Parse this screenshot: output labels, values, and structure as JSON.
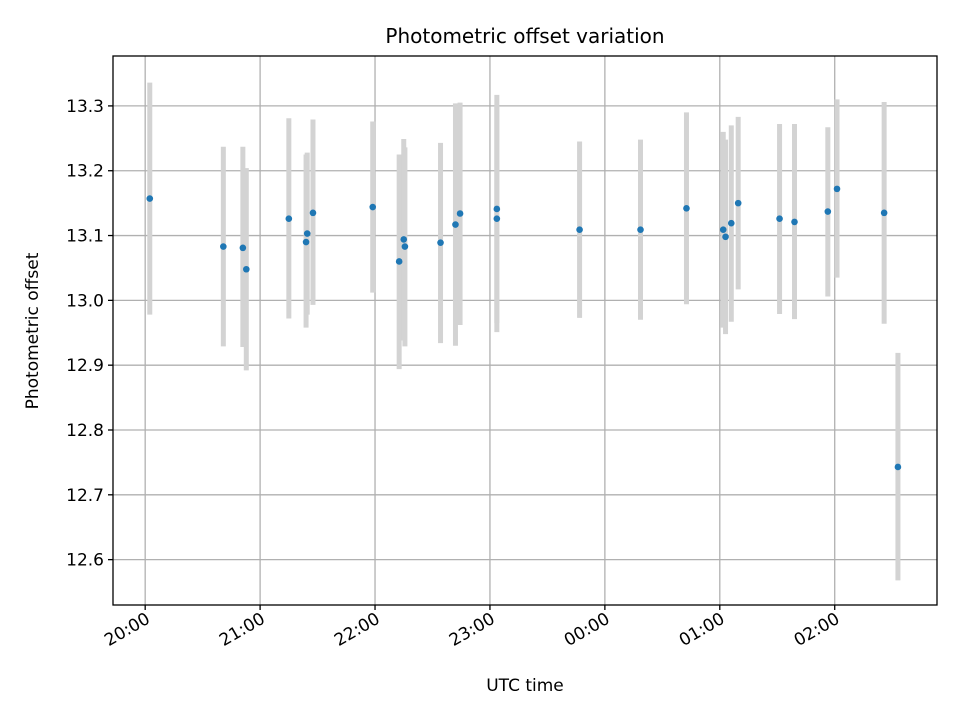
{
  "chart_data": {
    "type": "scatter",
    "title": "Photometric offset variation",
    "xlabel": "UTC time",
    "ylabel": "Photometric offset",
    "x_tick_labels": [
      "20:00",
      "21:00",
      "22:00",
      "23:00",
      "00:00",
      "01:00",
      "02:00"
    ],
    "y_tick_labels": [
      "12.6",
      "12.7",
      "12.8",
      "12.9",
      "13.0",
      "13.1",
      "13.2",
      "13.3"
    ],
    "x_axis": "time (hours after 20:00 UTC)",
    "xlim": [
      -0.28,
      6.89
    ],
    "ylim": [
      12.53,
      13.377
    ],
    "grid": true,
    "marker_color": "#1f77b4",
    "errorbar_color": "#d3d3d3",
    "points": [
      {
        "x": 0.04,
        "y": 13.157,
        "lo": 12.978,
        "hi": 13.336
      },
      {
        "x": 0.68,
        "y": 13.083,
        "lo": 12.929,
        "hi": 13.237
      },
      {
        "x": 0.85,
        "y": 13.081,
        "lo": 12.928,
        "hi": 13.237
      },
      {
        "x": 0.88,
        "y": 13.048,
        "lo": 12.892,
        "hi": 13.204
      },
      {
        "x": 1.25,
        "y": 13.126,
        "lo": 12.972,
        "hi": 13.281
      },
      {
        "x": 1.4,
        "y": 13.09,
        "lo": 12.958,
        "hi": 13.225
      },
      {
        "x": 1.41,
        "y": 13.103,
        "lo": 12.978,
        "hi": 13.228
      },
      {
        "x": 1.46,
        "y": 13.135,
        "lo": 12.993,
        "hi": 13.279
      },
      {
        "x": 1.98,
        "y": 13.144,
        "lo": 13.012,
        "hi": 13.276
      },
      {
        "x": 2.21,
        "y": 13.06,
        "lo": 12.894,
        "hi": 13.225
      },
      {
        "x": 2.25,
        "y": 13.094,
        "lo": 12.938,
        "hi": 13.249
      },
      {
        "x": 2.26,
        "y": 13.083,
        "lo": 12.929,
        "hi": 13.236
      },
      {
        "x": 2.57,
        "y": 13.089,
        "lo": 12.934,
        "hi": 13.243
      },
      {
        "x": 2.7,
        "y": 13.117,
        "lo": 12.93,
        "hi": 13.304
      },
      {
        "x": 2.74,
        "y": 13.134,
        "lo": 12.962,
        "hi": 13.305
      },
      {
        "x": 3.06,
        "y": 13.141,
        "lo": 12.965,
        "hi": 13.317
      },
      {
        "x": 3.06,
        "y": 13.126,
        "lo": 12.951,
        "hi": 13.3
      },
      {
        "x": 3.78,
        "y": 13.109,
        "lo": 12.973,
        "hi": 13.245
      },
      {
        "x": 4.31,
        "y": 13.109,
        "lo": 12.97,
        "hi": 13.248
      },
      {
        "x": 4.71,
        "y": 13.142,
        "lo": 12.994,
        "hi": 13.29
      },
      {
        "x": 5.03,
        "y": 13.109,
        "lo": 12.958,
        "hi": 13.26
      },
      {
        "x": 5.05,
        "y": 13.098,
        "lo": 12.948,
        "hi": 13.248
      },
      {
        "x": 5.1,
        "y": 13.119,
        "lo": 12.967,
        "hi": 13.27
      },
      {
        "x": 5.16,
        "y": 13.15,
        "lo": 13.017,
        "hi": 13.283
      },
      {
        "x": 5.52,
        "y": 13.126,
        "lo": 12.979,
        "hi": 13.272
      },
      {
        "x": 5.65,
        "y": 13.121,
        "lo": 12.971,
        "hi": 13.272
      },
      {
        "x": 5.94,
        "y": 13.137,
        "lo": 13.006,
        "hi": 13.267
      },
      {
        "x": 6.02,
        "y": 13.172,
        "lo": 13.035,
        "hi": 13.31
      },
      {
        "x": 6.43,
        "y": 13.135,
        "lo": 12.964,
        "hi": 13.306
      },
      {
        "x": 6.55,
        "y": 12.743,
        "lo": 12.568,
        "hi": 12.919
      }
    ]
  }
}
